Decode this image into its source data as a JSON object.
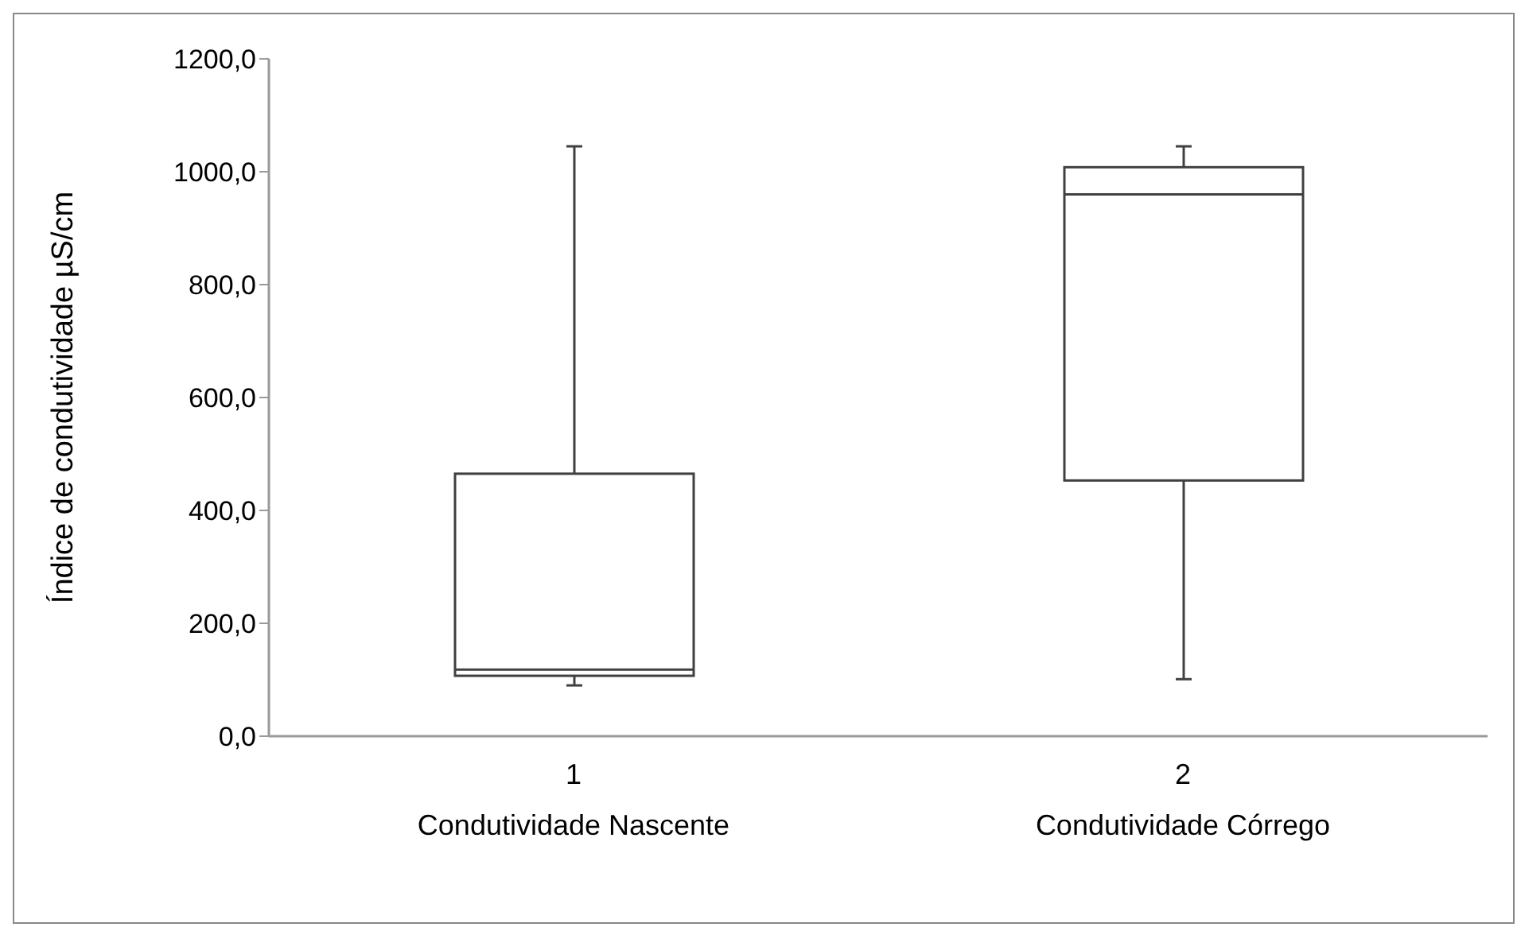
{
  "chart_data": {
    "type": "box",
    "ylabel": "Índice de condutividade µS/cm",
    "categories": [
      "1\nCondutividade Nascente",
      "2\nCondutividade Córrego"
    ],
    "boxes": [
      {
        "low": 90,
        "q1": 107,
        "median": 118,
        "q3": 465,
        "high": 1045
      },
      {
        "low": 101,
        "q1": 453,
        "median": 960,
        "q3": 1008,
        "high": 1045
      }
    ],
    "ylim": [
      0,
      1200
    ],
    "yticks": [
      {
        "value": 0,
        "label": "0,0"
      },
      {
        "value": 200,
        "label": "200,0"
      },
      {
        "value": 400,
        "label": "400,0"
      },
      {
        "value": 600,
        "label": "600,0"
      },
      {
        "value": 800,
        "label": "800,0"
      },
      {
        "value": 1000,
        "label": "1000,0"
      },
      {
        "value": 1200,
        "label": "1200,0"
      }
    ],
    "grid": false,
    "legend": false
  }
}
